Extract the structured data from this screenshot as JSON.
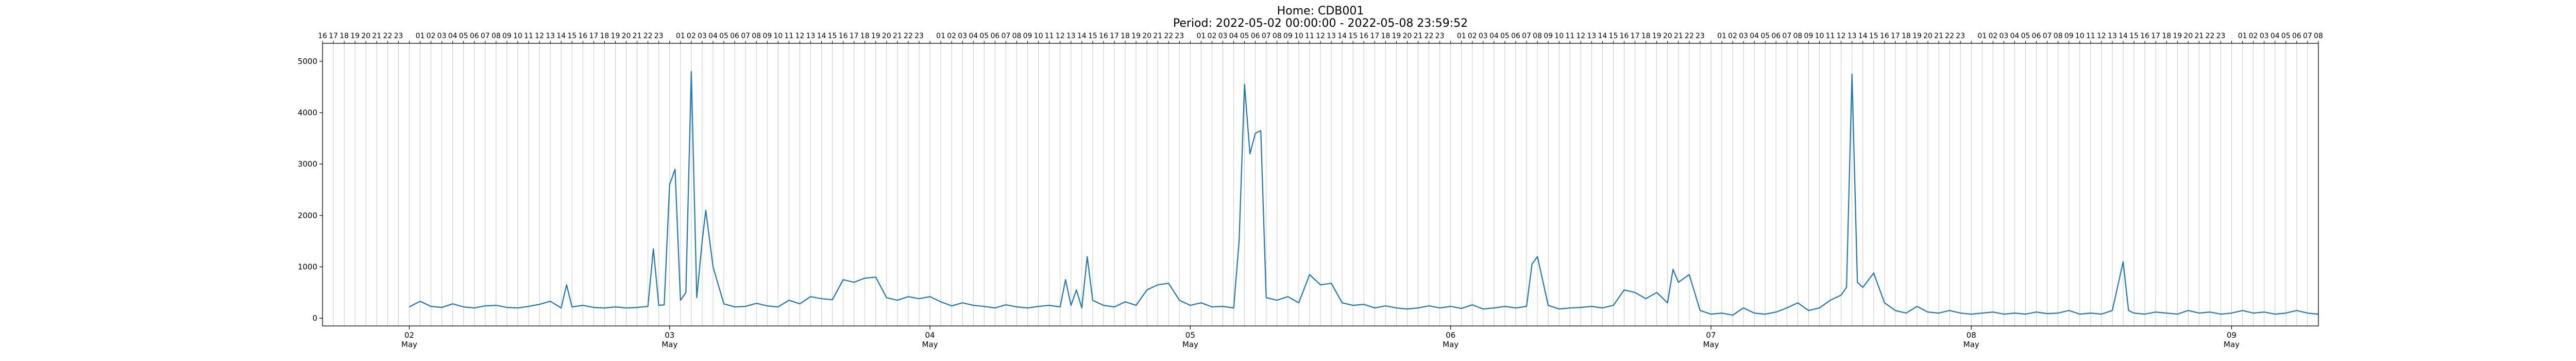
{
  "figure": {
    "title": "Home: CDB001",
    "subtitle": "Period: 2022-05-02 00:00:00 - 2022-05-08 23:59:52"
  },
  "chart_data": {
    "type": "line",
    "title": "Home: CDB001",
    "subtitle": "Period: 2022-05-02 00:00:00 - 2022-05-08 23:59:52",
    "xlabel": "",
    "ylabel": "",
    "xlim": [
      "2022-05-01 16:00",
      "2022-05-09 08:00"
    ],
    "ylim": [
      -150,
      5350
    ],
    "yticks": [
      0,
      1000,
      2000,
      3000,
      4000,
      5000
    ],
    "xticks_major": [
      {
        "date": "2022-05-02",
        "day": "02",
        "month": "May"
      },
      {
        "date": "2022-05-03",
        "day": "03",
        "month": "May"
      },
      {
        "date": "2022-05-04",
        "day": "04",
        "month": "May"
      },
      {
        "date": "2022-05-05",
        "day": "05",
        "month": "May"
      },
      {
        "date": "2022-05-06",
        "day": "06",
        "month": "May"
      },
      {
        "date": "2022-05-07",
        "day": "07",
        "month": "May"
      },
      {
        "date": "2022-05-08",
        "day": "08",
        "month": "May"
      },
      {
        "date": "2022-05-09",
        "day": "09",
        "month": "May"
      }
    ],
    "top_axis": "hour of day, one tick per hour",
    "grid": "vertical lines at each hour",
    "color": "#1f77b4",
    "series": [
      {
        "points": [
          [
            "2022-05-02 00:00",
            220
          ],
          [
            "2022-05-02 01:00",
            330
          ],
          [
            "2022-05-02 02:00",
            230
          ],
          [
            "2022-05-02 03:00",
            210
          ],
          [
            "2022-05-02 04:00",
            280
          ],
          [
            "2022-05-02 05:00",
            220
          ],
          [
            "2022-05-02 06:00",
            200
          ],
          [
            "2022-05-02 07:00",
            240
          ],
          [
            "2022-05-02 08:00",
            250
          ],
          [
            "2022-05-02 09:00",
            210
          ],
          [
            "2022-05-02 10:00",
            200
          ],
          [
            "2022-05-02 11:00",
            230
          ],
          [
            "2022-05-02 12:00",
            270
          ],
          [
            "2022-05-02 13:00",
            330
          ],
          [
            "2022-05-02 14:00",
            200
          ],
          [
            "2022-05-02 14:30",
            650
          ],
          [
            "2022-05-02 15:00",
            220
          ],
          [
            "2022-05-02 16:00",
            250
          ],
          [
            "2022-05-02 17:00",
            210
          ],
          [
            "2022-05-02 18:00",
            200
          ],
          [
            "2022-05-02 19:00",
            220
          ],
          [
            "2022-05-02 20:00",
            200
          ],
          [
            "2022-05-02 21:00",
            210
          ],
          [
            "2022-05-02 22:00",
            230
          ],
          [
            "2022-05-02 22:30",
            1350
          ],
          [
            "2022-05-02 23:00",
            250
          ],
          [
            "2022-05-02 23:30",
            260
          ],
          [
            "2022-05-03 00:00",
            2600
          ],
          [
            "2022-05-03 00:30",
            2900
          ],
          [
            "2022-05-03 01:00",
            350
          ],
          [
            "2022-05-03 01:30",
            500
          ],
          [
            "2022-05-03 02:00",
            4800
          ],
          [
            "2022-05-03 02:30",
            400
          ],
          [
            "2022-05-03 03:00",
            1500
          ],
          [
            "2022-05-03 03:20",
            2100
          ],
          [
            "2022-05-03 04:00",
            1000
          ],
          [
            "2022-05-03 05:00",
            280
          ],
          [
            "2022-05-03 06:00",
            220
          ],
          [
            "2022-05-03 07:00",
            230
          ],
          [
            "2022-05-03 08:00",
            290
          ],
          [
            "2022-05-03 09:00",
            240
          ],
          [
            "2022-05-03 10:00",
            220
          ],
          [
            "2022-05-03 11:00",
            350
          ],
          [
            "2022-05-03 12:00",
            280
          ],
          [
            "2022-05-03 13:00",
            420
          ],
          [
            "2022-05-03 14:00",
            380
          ],
          [
            "2022-05-03 15:00",
            360
          ],
          [
            "2022-05-03 16:00",
            750
          ],
          [
            "2022-05-03 17:00",
            700
          ],
          [
            "2022-05-03 18:00",
            780
          ],
          [
            "2022-05-03 19:00",
            800
          ],
          [
            "2022-05-03 20:00",
            400
          ],
          [
            "2022-05-03 21:00",
            350
          ],
          [
            "2022-05-03 22:00",
            420
          ],
          [
            "2022-05-03 23:00",
            380
          ],
          [
            "2022-05-04 00:00",
            420
          ],
          [
            "2022-05-04 01:00",
            320
          ],
          [
            "2022-05-04 02:00",
            240
          ],
          [
            "2022-05-04 03:00",
            300
          ],
          [
            "2022-05-04 04:00",
            250
          ],
          [
            "2022-05-04 05:00",
            230
          ],
          [
            "2022-05-04 06:00",
            200
          ],
          [
            "2022-05-04 07:00",
            260
          ],
          [
            "2022-05-04 08:00",
            220
          ],
          [
            "2022-05-04 09:00",
            200
          ],
          [
            "2022-05-04 10:00",
            230
          ],
          [
            "2022-05-04 11:00",
            250
          ],
          [
            "2022-05-04 12:00",
            220
          ],
          [
            "2022-05-04 12:30",
            750
          ],
          [
            "2022-05-04 13:00",
            250
          ],
          [
            "2022-05-04 13:30",
            550
          ],
          [
            "2022-05-04 14:00",
            200
          ],
          [
            "2022-05-04 14:30",
            1200
          ],
          [
            "2022-05-04 15:00",
            350
          ],
          [
            "2022-05-04 16:00",
            250
          ],
          [
            "2022-05-04 17:00",
            220
          ],
          [
            "2022-05-04 18:00",
            320
          ],
          [
            "2022-05-04 19:00",
            250
          ],
          [
            "2022-05-04 20:00",
            550
          ],
          [
            "2022-05-04 21:00",
            650
          ],
          [
            "2022-05-04 22:00",
            680
          ],
          [
            "2022-05-04 23:00",
            350
          ],
          [
            "2022-05-05 00:00",
            250
          ],
          [
            "2022-05-05 01:00",
            300
          ],
          [
            "2022-05-05 02:00",
            220
          ],
          [
            "2022-05-05 03:00",
            230
          ],
          [
            "2022-05-05 04:00",
            200
          ],
          [
            "2022-05-05 04:30",
            1500
          ],
          [
            "2022-05-05 05:00",
            4550
          ],
          [
            "2022-05-05 05:30",
            3200
          ],
          [
            "2022-05-05 06:00",
            3600
          ],
          [
            "2022-05-05 06:30",
            3650
          ],
          [
            "2022-05-05 07:00",
            400
          ],
          [
            "2022-05-05 08:00",
            350
          ],
          [
            "2022-05-05 09:00",
            420
          ],
          [
            "2022-05-05 10:00",
            300
          ],
          [
            "2022-05-05 11:00",
            850
          ],
          [
            "2022-05-05 12:00",
            650
          ],
          [
            "2022-05-05 13:00",
            680
          ],
          [
            "2022-05-05 14:00",
            300
          ],
          [
            "2022-05-05 15:00",
            250
          ],
          [
            "2022-05-05 16:00",
            270
          ],
          [
            "2022-05-05 17:00",
            200
          ],
          [
            "2022-05-05 18:00",
            240
          ],
          [
            "2022-05-05 19:00",
            200
          ],
          [
            "2022-05-05 20:00",
            180
          ],
          [
            "2022-05-05 21:00",
            200
          ],
          [
            "2022-05-05 22:00",
            240
          ],
          [
            "2022-05-05 23:00",
            200
          ],
          [
            "2022-05-06 00:00",
            230
          ],
          [
            "2022-05-06 01:00",
            190
          ],
          [
            "2022-05-06 02:00",
            260
          ],
          [
            "2022-05-06 03:00",
            180
          ],
          [
            "2022-05-06 04:00",
            200
          ],
          [
            "2022-05-06 05:00",
            230
          ],
          [
            "2022-05-06 06:00",
            200
          ],
          [
            "2022-05-06 07:00",
            230
          ],
          [
            "2022-05-06 07:30",
            1050
          ],
          [
            "2022-05-06 08:00",
            1200
          ],
          [
            "2022-05-06 09:00",
            250
          ],
          [
            "2022-05-06 10:00",
            180
          ],
          [
            "2022-05-06 11:00",
            200
          ],
          [
            "2022-05-06 12:00",
            210
          ],
          [
            "2022-05-06 13:00",
            230
          ],
          [
            "2022-05-06 14:00",
            200
          ],
          [
            "2022-05-06 15:00",
            250
          ],
          [
            "2022-05-06 16:00",
            550
          ],
          [
            "2022-05-06 17:00",
            500
          ],
          [
            "2022-05-06 18:00",
            380
          ],
          [
            "2022-05-06 19:00",
            500
          ],
          [
            "2022-05-06 20:00",
            300
          ],
          [
            "2022-05-06 20:30",
            950
          ],
          [
            "2022-05-06 21:00",
            700
          ],
          [
            "2022-05-06 22:00",
            850
          ],
          [
            "2022-05-06 23:00",
            150
          ],
          [
            "2022-05-07 00:00",
            80
          ],
          [
            "2022-05-07 01:00",
            100
          ],
          [
            "2022-05-07 02:00",
            60
          ],
          [
            "2022-05-07 03:00",
            200
          ],
          [
            "2022-05-07 04:00",
            100
          ],
          [
            "2022-05-07 05:00",
            80
          ],
          [
            "2022-05-07 06:00",
            120
          ],
          [
            "2022-05-07 07:00",
            200
          ],
          [
            "2022-05-07 08:00",
            300
          ],
          [
            "2022-05-07 09:00",
            150
          ],
          [
            "2022-05-07 10:00",
            200
          ],
          [
            "2022-05-07 11:00",
            350
          ],
          [
            "2022-05-07 12:00",
            450
          ],
          [
            "2022-05-07 12:30",
            600
          ],
          [
            "2022-05-07 13:00",
            4750
          ],
          [
            "2022-05-07 13:30",
            700
          ],
          [
            "2022-05-07 14:00",
            600
          ],
          [
            "2022-05-07 15:00",
            880
          ],
          [
            "2022-05-07 16:00",
            300
          ],
          [
            "2022-05-07 17:00",
            150
          ],
          [
            "2022-05-07 18:00",
            100
          ],
          [
            "2022-05-07 19:00",
            230
          ],
          [
            "2022-05-07 20:00",
            120
          ],
          [
            "2022-05-07 21:00",
            100
          ],
          [
            "2022-05-07 22:00",
            150
          ],
          [
            "2022-05-07 23:00",
            100
          ],
          [
            "2022-05-08 00:00",
            80
          ],
          [
            "2022-05-08 01:00",
            100
          ],
          [
            "2022-05-08 02:00",
            120
          ],
          [
            "2022-05-08 03:00",
            80
          ],
          [
            "2022-05-08 04:00",
            100
          ],
          [
            "2022-05-08 05:00",
            80
          ],
          [
            "2022-05-08 06:00",
            120
          ],
          [
            "2022-05-08 07:00",
            90
          ],
          [
            "2022-05-08 08:00",
            100
          ],
          [
            "2022-05-08 09:00",
            150
          ],
          [
            "2022-05-08 10:00",
            80
          ],
          [
            "2022-05-08 11:00",
            100
          ],
          [
            "2022-05-08 12:00",
            80
          ],
          [
            "2022-05-08 13:00",
            150
          ],
          [
            "2022-05-08 14:00",
            1100
          ],
          [
            "2022-05-08 14:30",
            150
          ],
          [
            "2022-05-08 15:00",
            100
          ],
          [
            "2022-05-08 16:00",
            80
          ],
          [
            "2022-05-08 17:00",
            120
          ],
          [
            "2022-05-08 18:00",
            100
          ],
          [
            "2022-05-08 19:00",
            80
          ],
          [
            "2022-05-08 20:00",
            150
          ],
          [
            "2022-05-08 21:00",
            100
          ],
          [
            "2022-05-08 22:00",
            120
          ],
          [
            "2022-05-08 23:00",
            80
          ],
          [
            "2022-05-09 00:00",
            100
          ],
          [
            "2022-05-09 01:00",
            150
          ],
          [
            "2022-05-09 02:00",
            100
          ],
          [
            "2022-05-09 03:00",
            120
          ],
          [
            "2022-05-09 04:00",
            80
          ],
          [
            "2022-05-09 05:00",
            100
          ],
          [
            "2022-05-09 06:00",
            150
          ],
          [
            "2022-05-09 07:00",
            100
          ],
          [
            "2022-05-09 08:00",
            80
          ]
        ]
      }
    ]
  }
}
